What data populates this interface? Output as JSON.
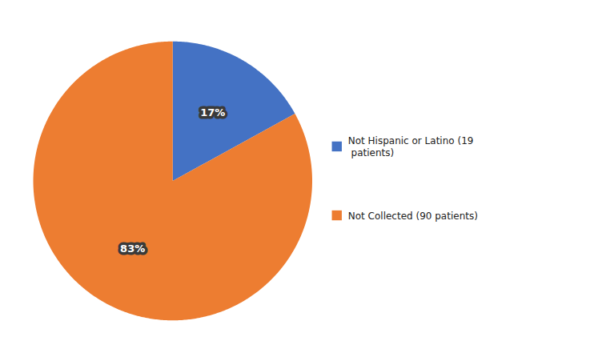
{
  "chart_data": {
    "type": "pie",
    "categories": [
      "Not Hispanic or Latino (19\n patients)",
      "Not Collected (90 patients)"
    ],
    "values": [
      17,
      83
    ],
    "value_labels": [
      "17%",
      "83%"
    ],
    "colors": [
      "#4472C4",
      "#ED7D31"
    ],
    "data_labels": true,
    "legend": "right"
  }
}
